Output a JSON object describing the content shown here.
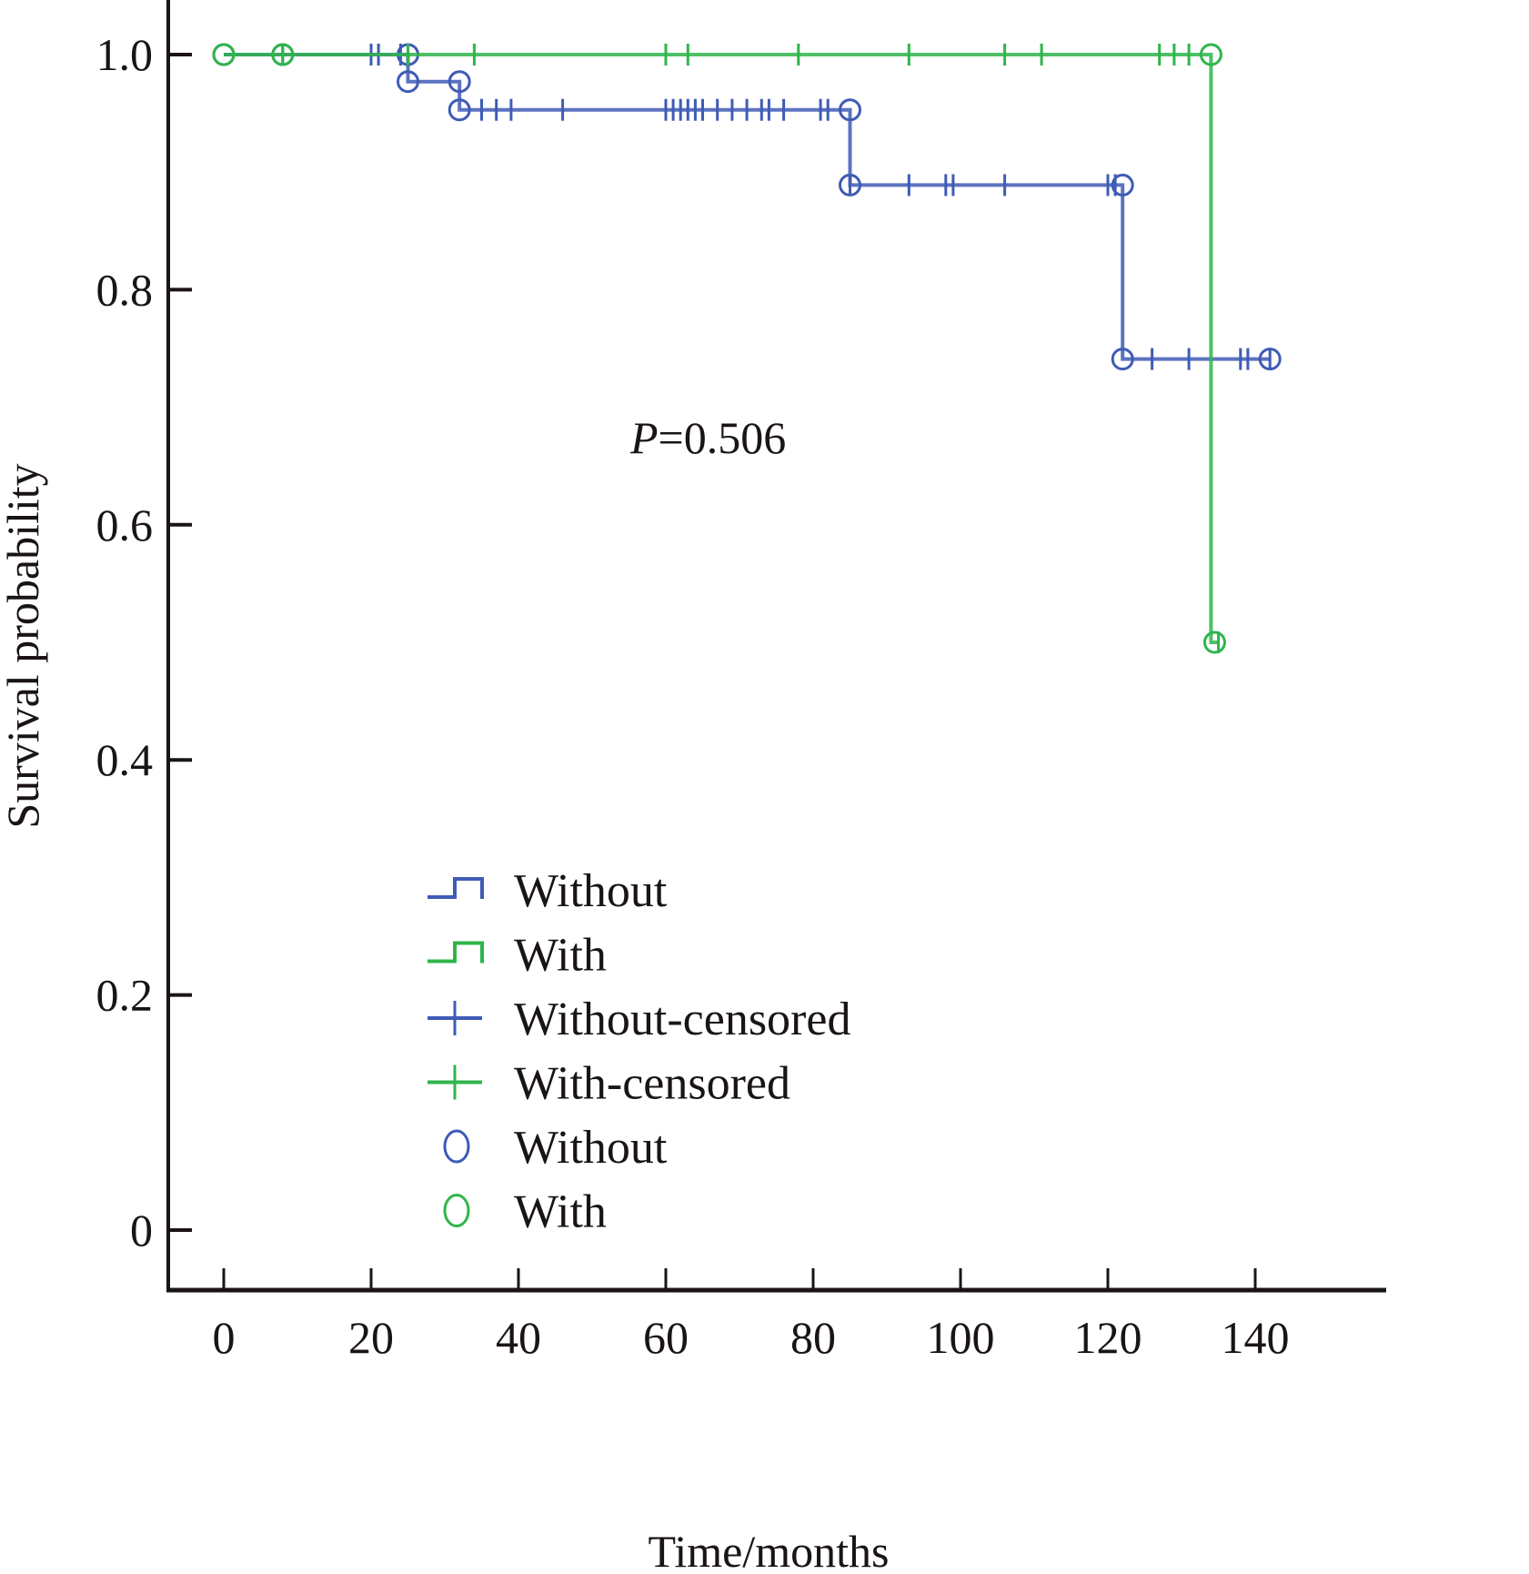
{
  "chart_data": {
    "type": "line",
    "subtype": "kaplan-meier",
    "title": "",
    "xlabel": "Time/months",
    "ylabel": "Survival probability",
    "xlim": [
      -7,
      157
    ],
    "ylim": [
      -0.05,
      1.045
    ],
    "xticks": [
      0,
      20,
      40,
      60,
      80,
      100,
      120,
      140
    ],
    "yticks": [
      0,
      0.2,
      0.4,
      0.6,
      0.8,
      1.0
    ],
    "xtick_labels": [
      "0",
      "20",
      "40",
      "60",
      "80",
      "100",
      "120",
      "140"
    ],
    "ytick_labels": [
      "0",
      "0.2",
      "0.4",
      "0.6",
      "0.8",
      "1.0"
    ],
    "grid": false,
    "annotation": {
      "prefix": "P",
      "text": "=0.506"
    },
    "legend": {
      "placement": "bottom-center",
      "entries": [
        {
          "label": "Without",
          "kind": "step",
          "series": "without"
        },
        {
          "label": "With",
          "kind": "step",
          "series": "with"
        },
        {
          "label": "Without-censored",
          "kind": "plus",
          "series": "without"
        },
        {
          "label": "With-censored",
          "kind": "plus",
          "series": "with"
        },
        {
          "label": "Without",
          "kind": "circle",
          "series": "without"
        },
        {
          "label": "With",
          "kind": "circle",
          "series": "with"
        }
      ]
    },
    "series": [
      {
        "name": "Without",
        "key": "without",
        "color": "#3f5bb5",
        "steps": [
          [
            0,
            1.0
          ],
          [
            25,
            0.977
          ],
          [
            32,
            0.953
          ],
          [
            85,
            0.889
          ],
          [
            122,
            0.741
          ],
          [
            142,
            0.741
          ]
        ],
        "censored": [
          8,
          20,
          21,
          24,
          35,
          37,
          39,
          46,
          60,
          61,
          62,
          63,
          64,
          65,
          67,
          69,
          71,
          73,
          74,
          76,
          81,
          82,
          85,
          93,
          98,
          99,
          106,
          120,
          121,
          126,
          131,
          138,
          139,
          142
        ],
        "events": [
          [
            0,
            1.0
          ],
          [
            8,
            1.0
          ],
          [
            25,
            1.0
          ],
          [
            25,
            0.977
          ],
          [
            32,
            0.977
          ],
          [
            32,
            0.953
          ],
          [
            85,
            0.953
          ],
          [
            85,
            0.889
          ],
          [
            122,
            0.889
          ],
          [
            122,
            0.741
          ],
          [
            142,
            0.741
          ]
        ]
      },
      {
        "name": "With",
        "key": "with",
        "color": "#2fb54a",
        "steps": [
          [
            0,
            1.0
          ],
          [
            134,
            0.5
          ],
          [
            135,
            0.5
          ]
        ],
        "censored": [
          8,
          25,
          34,
          60,
          63,
          78,
          93,
          106,
          111,
          127,
          129,
          131,
          135
        ],
        "events": [
          [
            0,
            1.0
          ],
          [
            8,
            1.0
          ],
          [
            134,
            1.0
          ],
          [
            134.5,
            0.5
          ]
        ]
      }
    ]
  }
}
